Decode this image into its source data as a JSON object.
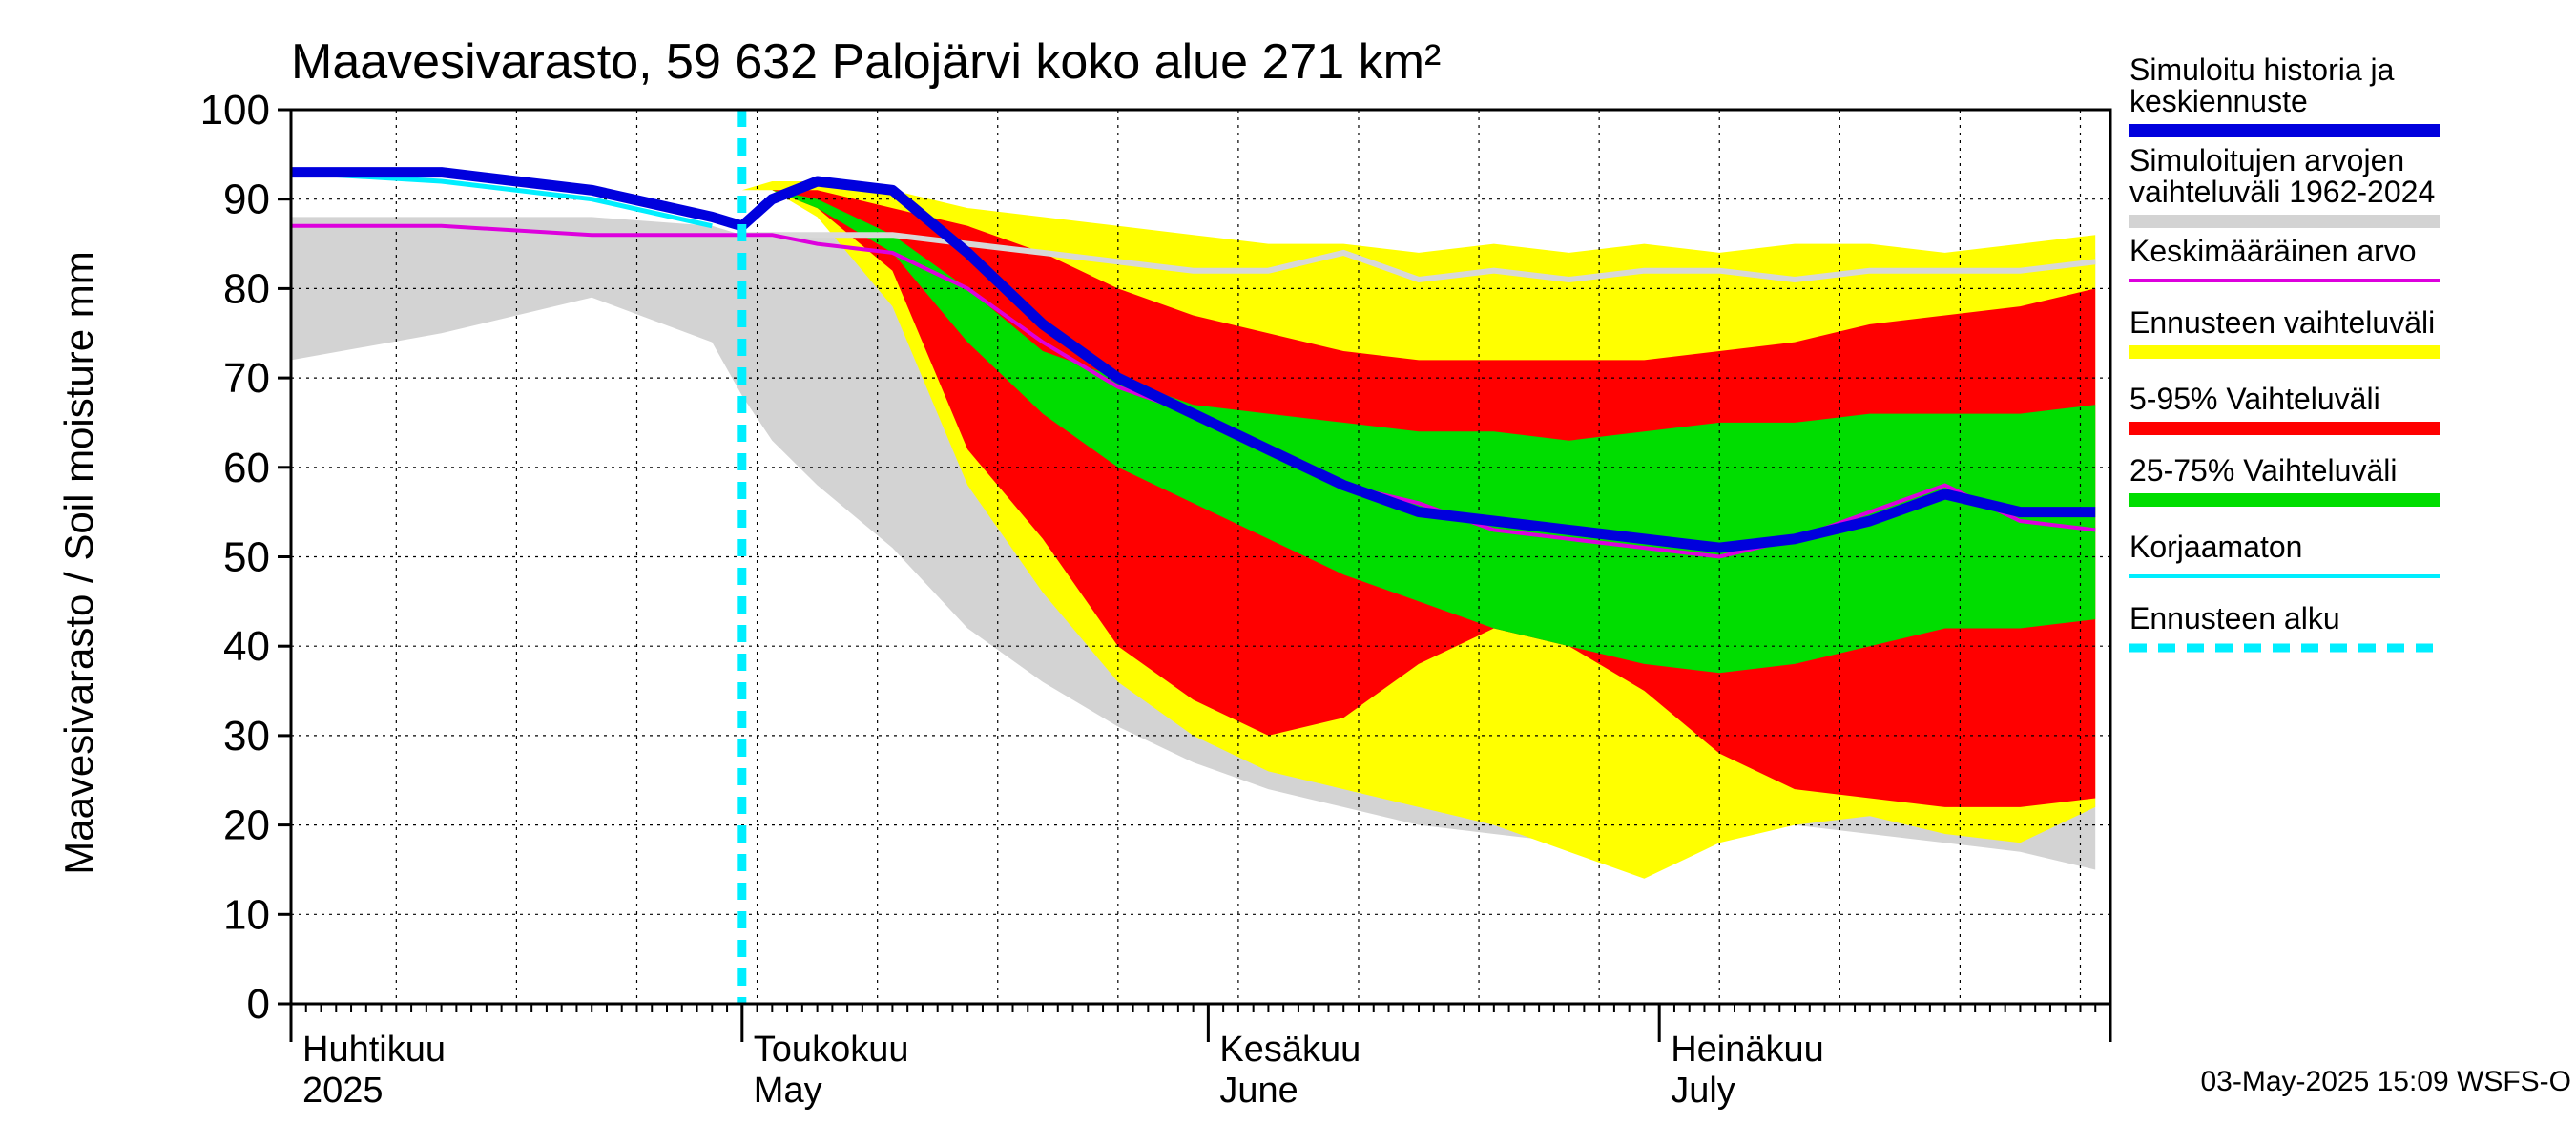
{
  "chart_data": {
    "type": "area",
    "title": "Maavesivarasto, 59 632 Palojärvi koko alue 271 km²",
    "ylabel": "Maavesivarasto / Soil moisture   mm",
    "xlabel": "",
    "ylim": [
      0,
      100
    ],
    "yticks": [
      "0",
      "10",
      "20",
      "30",
      "40",
      "50",
      "60",
      "70",
      "80",
      "90",
      "100"
    ],
    "x_range": [
      "2025-04-01",
      "2025-07-31"
    ],
    "months": [
      {
        "fi": "Huhtikuu",
        "en": "2025",
        "date": "2025-04-01"
      },
      {
        "fi": "Toukokuu",
        "en": "May",
        "date": "2025-05-01"
      },
      {
        "fi": "Kesäkuu",
        "en": "June",
        "date": "2025-06-01"
      },
      {
        "fi": "Heinäkuu",
        "en": "July",
        "date": "2025-07-01"
      }
    ],
    "forecast_start_day": 30,
    "days": [
      0,
      10,
      20,
      28,
      30,
      32,
      35,
      40,
      45,
      50,
      55,
      60,
      65,
      70,
      75,
      80,
      85,
      90,
      95,
      100,
      105,
      110,
      115,
      120
    ],
    "series": [
      {
        "name": "Simuloitujen arvojen vaihteluväli 1962-2024 (max)",
        "color": "#d3d3d3",
        "values": [
          88,
          88,
          88,
          87,
          86,
          86,
          86,
          86,
          85,
          84,
          83,
          82,
          82,
          83,
          82,
          81,
          82,
          83,
          82,
          82,
          83,
          82,
          83,
          84
        ]
      },
      {
        "name": "Simuloitujen arvojen vaihteluväli 1962-2024 (min)",
        "color": "#d3d3d3",
        "values": [
          72,
          75,
          79,
          74,
          68,
          63,
          58,
          51,
          42,
          36,
          31,
          27,
          24,
          22,
          20,
          19,
          18,
          18,
          19,
          20,
          19,
          18,
          17,
          15
        ]
      },
      {
        "name": "Ennusteen vaihteluväli (max)",
        "color": "#ffff00",
        "values": [
          null,
          null,
          null,
          null,
          91,
          92,
          92,
          91,
          89,
          88,
          87,
          86,
          85,
          85,
          84,
          85,
          84,
          85,
          84,
          85,
          85,
          84,
          85,
          86
        ]
      },
      {
        "name": "Ennusteen vaihteluväli (min)",
        "color": "#ffff00",
        "values": [
          null,
          null,
          null,
          null,
          91,
          91,
          88,
          78,
          58,
          46,
          36,
          30,
          26,
          24,
          22,
          20,
          17,
          14,
          18,
          20,
          21,
          19,
          18,
          22
        ]
      },
      {
        "name": "5-95% Vaihteluväli (max)",
        "color": "#ff0000",
        "values": [
          null,
          null,
          null,
          null,
          91,
          91,
          91,
          89,
          87,
          84,
          80,
          77,
          75,
          73,
          72,
          72,
          72,
          72,
          73,
          74,
          76,
          77,
          78,
          80
        ]
      },
      {
        "name": "5-95% Vaihteluväli (min)",
        "color": "#ff0000",
        "values": [
          null,
          null,
          null,
          null,
          91,
          91,
          89,
          82,
          62,
          52,
          40,
          34,
          30,
          32,
          38,
          42,
          40,
          35,
          28,
          24,
          23,
          22,
          22,
          23
        ]
      },
      {
        "name": "25-75% Vaihteluväli (max)",
        "color": "#00dd00",
        "values": [
          null,
          null,
          null,
          null,
          91,
          91,
          90,
          86,
          80,
          73,
          70,
          67,
          66,
          65,
          64,
          64,
          63,
          64,
          65,
          65,
          66,
          66,
          66,
          67
        ]
      },
      {
        "name": "25-75% Vaihteluväli (min)",
        "color": "#00dd00",
        "values": [
          null,
          null,
          null,
          null,
          91,
          91,
          89,
          84,
          74,
          66,
          60,
          56,
          52,
          48,
          45,
          42,
          40,
          38,
          37,
          38,
          40,
          42,
          42,
          43
        ]
      },
      {
        "name": "Keskimääräinen arvo",
        "color": "#dd00dd",
        "values": [
          87,
          87,
          86,
          86,
          86,
          86,
          85,
          84,
          80,
          74,
          69,
          66,
          62,
          58,
          56,
          53,
          52,
          51,
          50,
          52,
          55,
          58,
          54,
          53
        ]
      },
      {
        "name": "Simuloitu historia ja keskiennuste",
        "color": "#0000dd",
        "values": [
          93,
          93,
          91,
          88,
          87,
          90,
          92,
          91,
          84,
          76,
          70,
          66,
          62,
          58,
          55,
          54,
          53,
          52,
          51,
          52,
          54,
          57,
          55,
          55
        ]
      },
      {
        "name": "Korjaamaton",
        "color": "#00eeff",
        "values": [
          93,
          92,
          90,
          87,
          null,
          null,
          null,
          null,
          null,
          null,
          null,
          null,
          null,
          null,
          null,
          null,
          null,
          null,
          null,
          null,
          null,
          null,
          null,
          null
        ]
      },
      {
        "name": "Simuloitujen arvojen mediaani",
        "color": "#d8d8d8",
        "values": [
          null,
          null,
          null,
          null,
          86,
          86,
          86,
          86,
          85,
          84,
          83,
          82,
          82,
          84,
          81,
          82,
          81,
          82,
          82,
          81,
          82,
          82,
          82,
          83
        ]
      }
    ],
    "legend": [
      {
        "label": "Simuloitu historia ja keskiennuste",
        "color": "#0000dd",
        "style": "thick"
      },
      {
        "label": "Simuloitujen arvojen vaihteluväli 1962-2024",
        "color": "#d3d3d3",
        "style": "thick"
      },
      {
        "label": "Keskimääräinen arvo",
        "color": "#dd00dd",
        "style": "thin"
      },
      {
        "label": "Ennusteen vaihteluväli",
        "color": "#ffff00",
        "style": "thick"
      },
      {
        "label": "5-95% Vaihteluväli",
        "color": "#ff0000",
        "style": "thick"
      },
      {
        "label": "25-75% Vaihteluväli",
        "color": "#00dd00",
        "style": "thick"
      },
      {
        "label": "Korjaamaton",
        "color": "#00eeff",
        "style": "thin"
      },
      {
        "label": "Ennusteen alku",
        "color": "#00eeff",
        "style": "dashed"
      }
    ],
    "footer": "03-May-2025 15:09 WSFS-O"
  }
}
